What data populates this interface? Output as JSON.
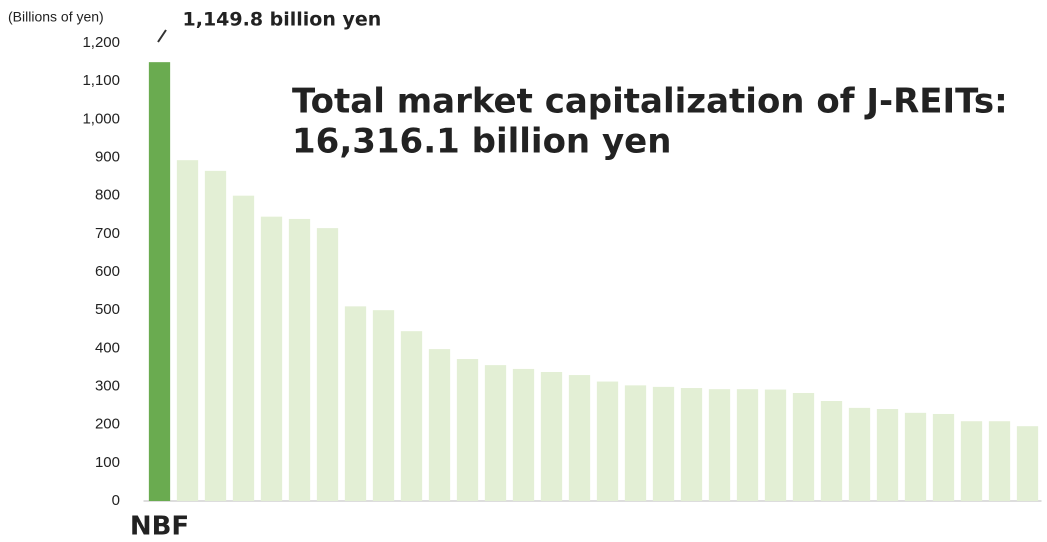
{
  "chart_data": {
    "type": "bar",
    "ylabel": "(Billions of yen)",
    "annotation": [
      "Total market capitalization of J-REITs:",
      "16,316.1 billion yen"
    ],
    "categories": [
      "NBF",
      null,
      null,
      null,
      null,
      null,
      null,
      null,
      null,
      null,
      null,
      null,
      null,
      null,
      null,
      null,
      null,
      null,
      null,
      null,
      null,
      null,
      null,
      null,
      null,
      null,
      null,
      null,
      null,
      null,
      null,
      null
    ],
    "values": [
      1149.8,
      893,
      865,
      800,
      745,
      739,
      715,
      510,
      500,
      445,
      398,
      372,
      356,
      346,
      338,
      330,
      313,
      303,
      299,
      296,
      293,
      293,
      292,
      283,
      262,
      244,
      241,
      231,
      228,
      209,
      209,
      196
    ],
    "value_labels": [
      "1,149.8 billion yen",
      null,
      null,
      null,
      null,
      null,
      null,
      null,
      null,
      null,
      null,
      null,
      null,
      null,
      null,
      null,
      null,
      null,
      null,
      null,
      null,
      null,
      null,
      null,
      null,
      null,
      null,
      null,
      null,
      null,
      null,
      null
    ],
    "colors": [
      "#6aab50",
      "#e3efd5",
      "#e3efd5",
      "#e3efd5",
      "#e3efd5",
      "#e3efd5",
      "#e3efd5",
      "#e3efd5",
      "#e3efd5",
      "#e3efd5",
      "#e3efd5",
      "#e3efd5",
      "#e3efd5",
      "#e3efd5",
      "#e3efd5",
      "#e3efd5",
      "#e3efd5",
      "#e3efd5",
      "#e3efd5",
      "#e3efd5",
      "#e3efd5",
      "#e3efd5",
      "#e3efd5",
      "#e3efd5",
      "#e3efd5",
      "#e3efd5",
      "#e3efd5",
      "#e3efd5",
      "#e3efd5",
      "#e3efd5",
      "#e3efd5",
      "#e3efd5"
    ],
    "ylim": [
      0,
      1200
    ],
    "yticks": [
      0,
      100,
      200,
      300,
      400,
      500,
      600,
      700,
      800,
      900,
      {
        "value": 1000,
        "label": "1,000"
      },
      {
        "value": 1100,
        "label": "1,100"
      },
      {
        "value": 1200,
        "label": "1,200"
      }
    ],
    "grid": false
  }
}
